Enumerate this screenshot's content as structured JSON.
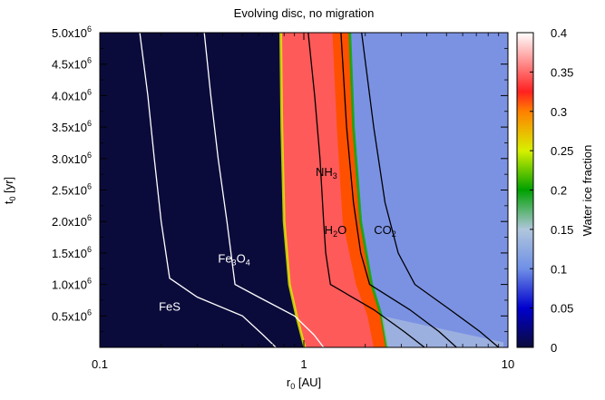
{
  "chart_data": {
    "type": "heatmap",
    "title": "Evolving disc, no migration",
    "xlabel": {
      "base": "r",
      "sub": "0",
      "unit": " [AU]"
    },
    "ylabel": {
      "base": "t",
      "sub": "0",
      "unit": " [yr]"
    },
    "x_scale": "log",
    "xlim": [
      0.1,
      10
    ],
    "ylim": [
      0,
      5000000
    ],
    "x_ticks": [
      {
        "value": 0.1,
        "label": "0.1"
      },
      {
        "value": 1,
        "label": "1"
      },
      {
        "value": 10,
        "label": "10"
      }
    ],
    "y_ticks": [
      {
        "value": 500000,
        "mant": "0.5x10",
        "exp": "6"
      },
      {
        "value": 1000000,
        "mant": "1.0x10",
        "exp": "6"
      },
      {
        "value": 1500000,
        "mant": "1.5x10",
        "exp": "6"
      },
      {
        "value": 2000000,
        "mant": "2.0x10",
        "exp": "6"
      },
      {
        "value": 2500000,
        "mant": "2.5x10",
        "exp": "6"
      },
      {
        "value": 3000000,
        "mant": "3.0x10",
        "exp": "6"
      },
      {
        "value": 3500000,
        "mant": "3.5x10",
        "exp": "6"
      },
      {
        "value": 4000000,
        "mant": "4.0x10",
        "exp": "6"
      },
      {
        "value": 4500000,
        "mant": "4.5x10",
        "exp": "6"
      },
      {
        "value": 5000000,
        "mant": "5.0x10",
        "exp": "6"
      }
    ],
    "colorbar": {
      "label": "Water ice fraction",
      "range": [
        0,
        0.4
      ],
      "ticks": [
        "0",
        "0.05",
        "0.1",
        "0.15",
        "0.2",
        "0.25",
        "0.3",
        "0.35",
        "0.4"
      ],
      "stops": [
        {
          "v": 0.0,
          "color": "#0b0b3b"
        },
        {
          "v": 0.05,
          "color": "#0000cd"
        },
        {
          "v": 0.1,
          "color": "#6f8fe6"
        },
        {
          "v": 0.15,
          "color": "#b0c6dc"
        },
        {
          "v": 0.2,
          "color": "#00a000"
        },
        {
          "v": 0.25,
          "color": "#d8f000"
        },
        {
          "v": 0.3,
          "color": "#ff8000"
        },
        {
          "v": 0.325,
          "color": "#ff2020"
        },
        {
          "v": 0.4,
          "color": "#ffffff"
        }
      ]
    },
    "regions": [
      {
        "name": "no water ice",
        "fraction": 0.0,
        "color": "#0b0b3b"
      },
      {
        "name": "water ice zone",
        "fraction": 0.36,
        "color": "#ff5a5a"
      },
      {
        "name": "CO2-free ice band",
        "fraction": 0.31,
        "color": "#ff5000"
      },
      {
        "name": "outer disc",
        "fraction": 0.1,
        "color": "#7b92e3"
      }
    ],
    "boundary_fronts": {
      "inner_edge_r": [
        [
          1.01,
          0
        ],
        [
          0.92,
          500000
        ],
        [
          0.85,
          1000000
        ],
        [
          0.8,
          2000000
        ],
        [
          0.78,
          3500000
        ],
        [
          0.77,
          5000000
        ]
      ],
      "mid_edge_r": [
        [
          2.2,
          0
        ],
        [
          2.05,
          500000
        ],
        [
          1.8,
          1000000
        ],
        [
          1.55,
          2000000
        ],
        [
          1.45,
          3500000
        ],
        [
          1.38,
          5000000
        ]
      ],
      "outer_edge_r": [
        [
          2.55,
          0
        ],
        [
          2.4,
          500000
        ],
        [
          2.15,
          1000000
        ],
        [
          1.9,
          2000000
        ],
        [
          1.75,
          3500000
        ],
        [
          1.68,
          5000000
        ]
      ]
    },
    "series": [
      {
        "name": "FeS",
        "color": "#ffffff",
        "points": [
          [
            0.73,
            0
          ],
          [
            0.63,
            200000
          ],
          [
            0.5,
            500000
          ],
          [
            0.3,
            800000
          ],
          [
            0.22,
            1100000
          ],
          [
            0.2,
            2000000
          ],
          [
            0.185,
            3000000
          ],
          [
            0.172,
            4000000
          ],
          [
            0.157,
            5000000
          ]
        ]
      },
      {
        "name": "Fe3O4",
        "color": "#ffffff",
        "points": [
          [
            1.25,
            0
          ],
          [
            1.12,
            200000
          ],
          [
            0.9,
            500000
          ],
          [
            0.6,
            800000
          ],
          [
            0.46,
            1000000
          ],
          [
            0.42,
            2000000
          ],
          [
            0.38,
            3000000
          ],
          [
            0.35,
            4000000
          ],
          [
            0.325,
            5000000
          ]
        ]
      },
      {
        "name": "H2O",
        "color": "#000000",
        "points": [
          [
            3.9,
            0
          ],
          [
            3.1,
            250000
          ],
          [
            2.2,
            600000
          ],
          [
            1.35,
            1000000
          ],
          [
            1.28,
            1500000
          ],
          [
            1.25,
            2000000
          ],
          [
            1.2,
            3000000
          ],
          [
            1.13,
            4000000
          ],
          [
            1.05,
            5000000
          ]
        ]
      },
      {
        "name": "NH3",
        "color": "#000000",
        "points": [
          [
            5.6,
            0
          ],
          [
            4.6,
            250000
          ],
          [
            3.3,
            600000
          ],
          [
            2.1,
            1000000
          ],
          [
            1.9,
            1500000
          ],
          [
            1.75,
            2300000
          ],
          [
            1.62,
            3500000
          ],
          [
            1.52,
            5000000
          ]
        ]
      },
      {
        "name": "CO2",
        "color": "#000000",
        "points": [
          [
            9.0,
            0
          ],
          [
            7.3,
            250000
          ],
          [
            5.2,
            600000
          ],
          [
            3.5,
            1000000
          ],
          [
            2.9,
            1500000
          ],
          [
            2.5,
            2300000
          ],
          [
            2.2,
            3500000
          ],
          [
            1.92,
            5000000
          ]
        ]
      }
    ],
    "annotations": [
      {
        "base": "FeS",
        "sub": "",
        "color": "#ffffff",
        "x": 0.22,
        "y": 580000
      },
      {
        "base": "Fe",
        "sub": "3",
        "mid": "O",
        "sub2": "4",
        "color": "#ffffff",
        "x": 0.455,
        "y": 1350000
      },
      {
        "base": "H",
        "sub": "2",
        "mid": "O",
        "sub2": "",
        "color": "#000000",
        "x": 1.43,
        "y": 1800000
      },
      {
        "base": "NH",
        "sub": "3",
        "mid": "",
        "sub2": "",
        "color": "#000000",
        "x": 1.29,
        "y": 2720000
      },
      {
        "base": "CO",
        "sub": "2",
        "mid": "",
        "sub2": "",
        "color": "#000000",
        "x": 2.5,
        "y": 1800000
      }
    ]
  }
}
